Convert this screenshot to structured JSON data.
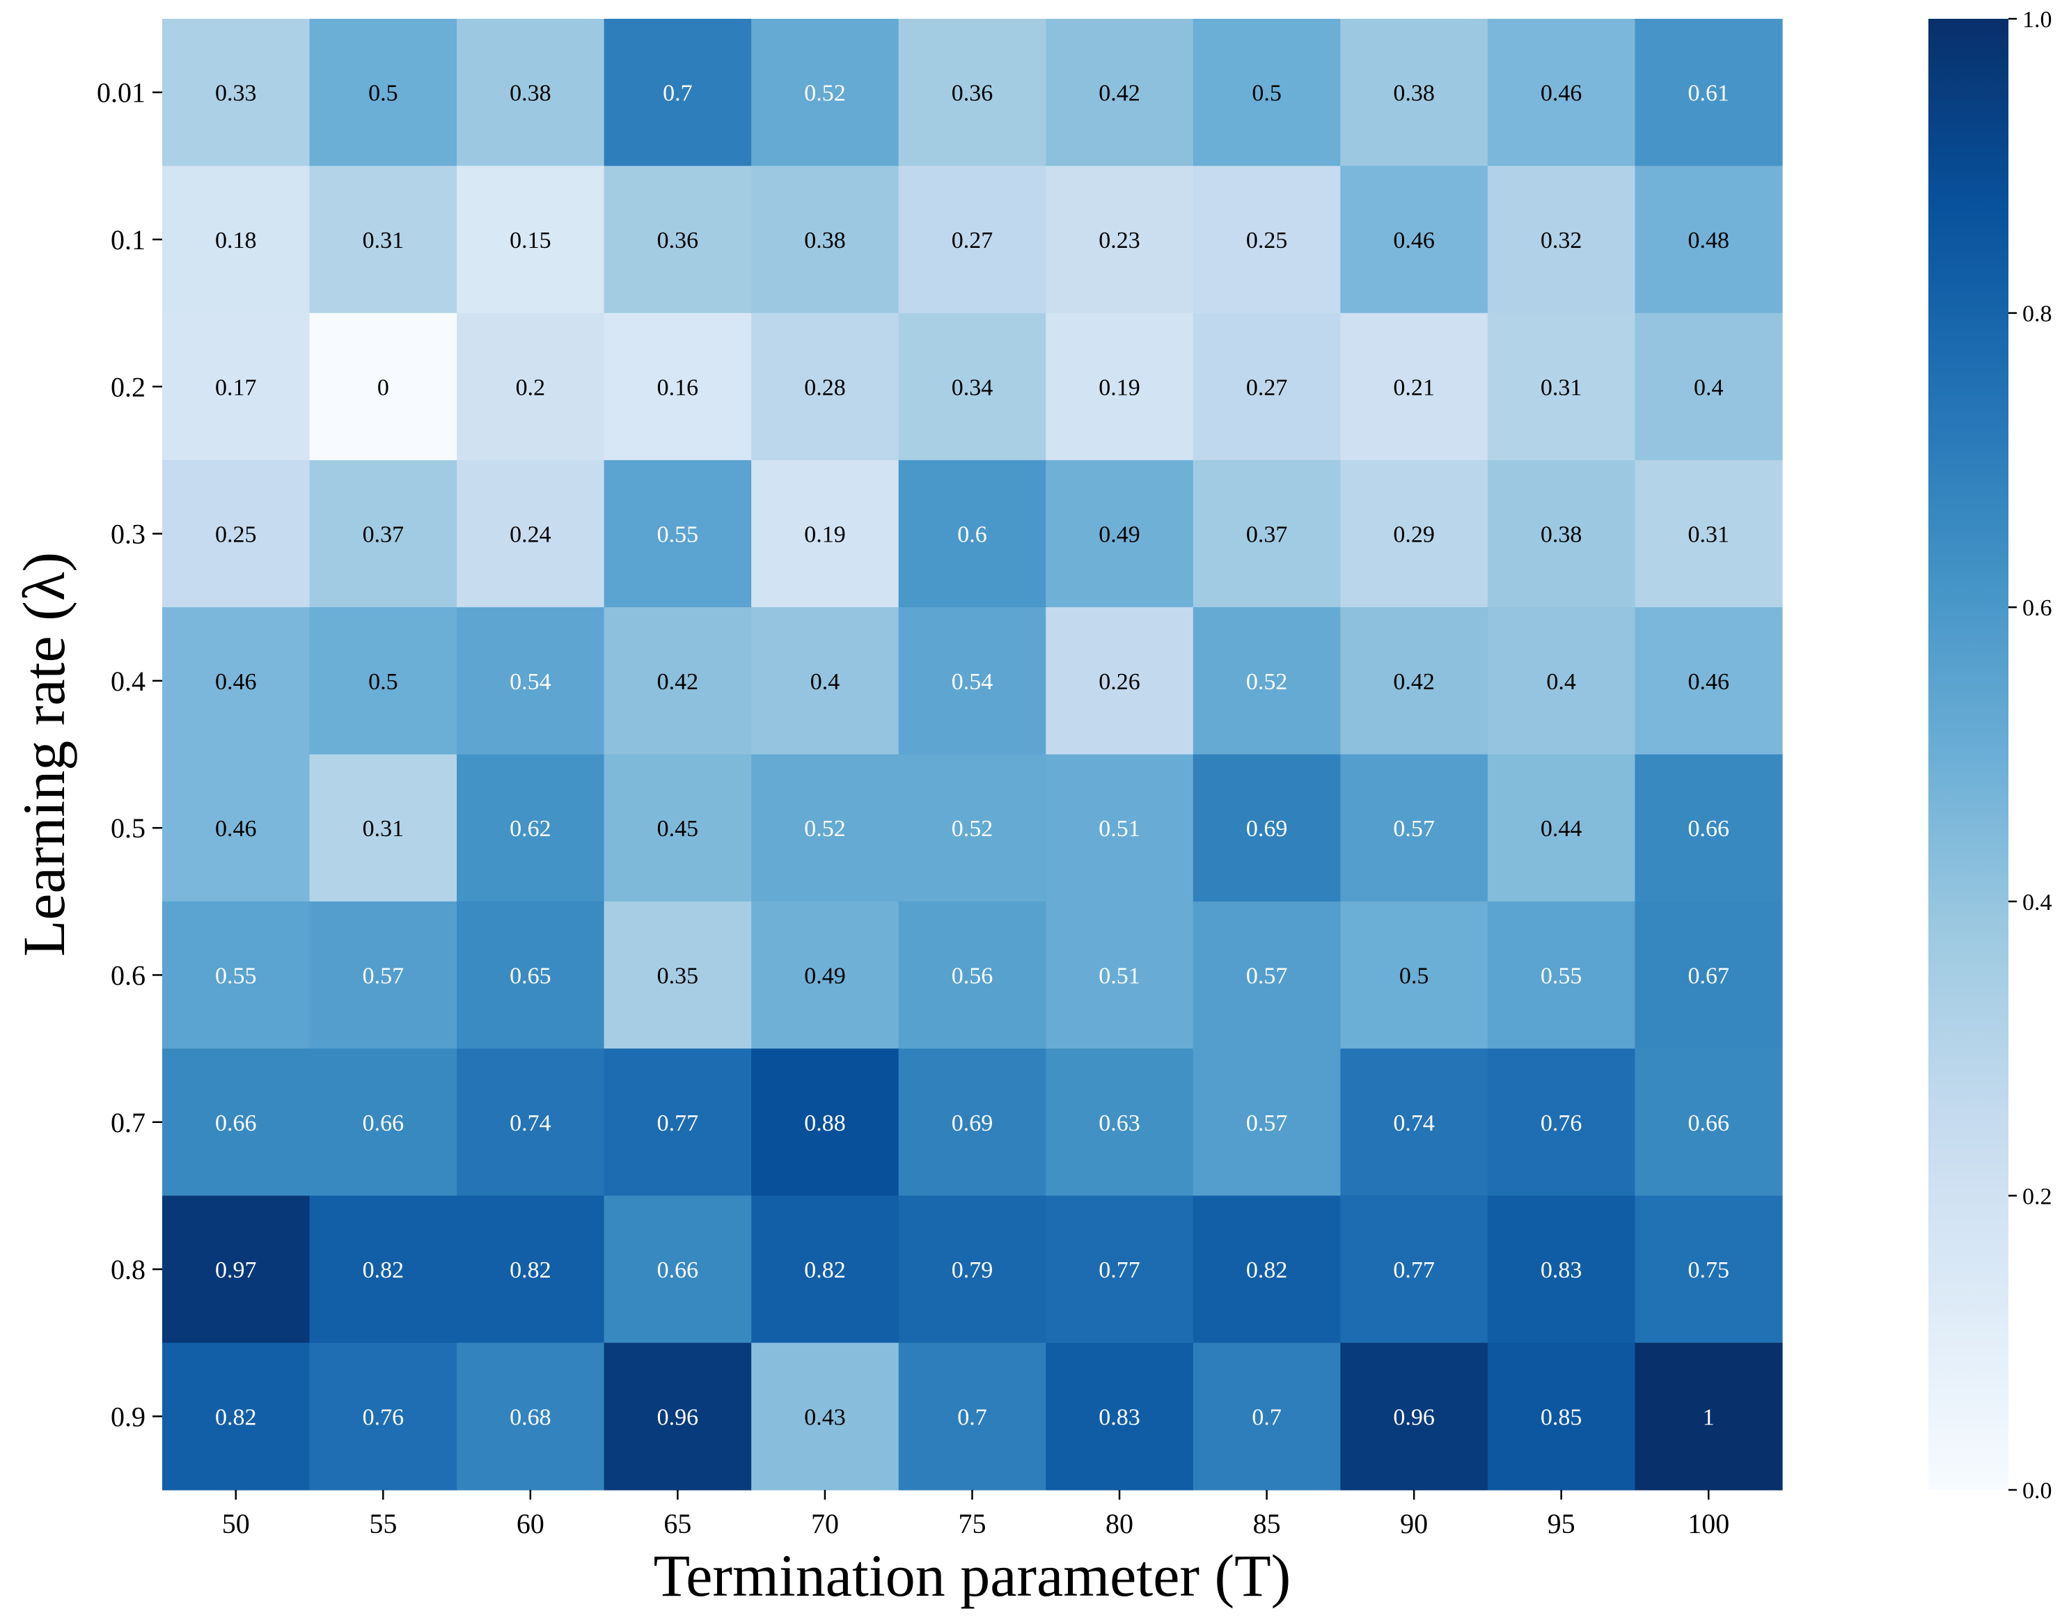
{
  "chart_data": {
    "type": "heatmap",
    "xlabel": "Termination parameter (T)",
    "ylabel": "Learning rate (λ)",
    "x_categories": [
      "50",
      "55",
      "60",
      "65",
      "70",
      "75",
      "80",
      "85",
      "90",
      "95",
      "100"
    ],
    "y_categories": [
      "0.01",
      "0.1",
      "0.2",
      "0.3",
      "0.4",
      "0.5",
      "0.6",
      "0.7",
      "0.8",
      "0.9"
    ],
    "values": [
      [
        0.33,
        0.5,
        0.38,
        0.7,
        0.52,
        0.36,
        0.42,
        0.5,
        0.38,
        0.46,
        0.61
      ],
      [
        0.18,
        0.31,
        0.15,
        0.36,
        0.38,
        0.27,
        0.23,
        0.25,
        0.46,
        0.32,
        0.48
      ],
      [
        0.17,
        0,
        0.2,
        0.16,
        0.28,
        0.34,
        0.19,
        0.27,
        0.21,
        0.31,
        0.4
      ],
      [
        0.25,
        0.37,
        0.24,
        0.55,
        0.19,
        0.6,
        0.49,
        0.37,
        0.29,
        0.38,
        0.31
      ],
      [
        0.46,
        0.5,
        0.54,
        0.42,
        0.4,
        0.54,
        0.26,
        0.52,
        0.42,
        0.4,
        0.46
      ],
      [
        0.46,
        0.31,
        0.62,
        0.45,
        0.52,
        0.52,
        0.51,
        0.69,
        0.57,
        0.44,
        0.66
      ],
      [
        0.55,
        0.57,
        0.65,
        0.35,
        0.49,
        0.56,
        0.51,
        0.57,
        0.5,
        0.55,
        0.67
      ],
      [
        0.66,
        0.66,
        0.74,
        0.77,
        0.88,
        0.69,
        0.63,
        0.57,
        0.74,
        0.76,
        0.66
      ],
      [
        0.97,
        0.82,
        0.82,
        0.66,
        0.82,
        0.79,
        0.77,
        0.82,
        0.77,
        0.83,
        0.75
      ],
      [
        0.82,
        0.76,
        0.68,
        0.96,
        0.43,
        0.7,
        0.83,
        0.7,
        0.96,
        0.85,
        1
      ]
    ],
    "colorbar": {
      "range": [
        0.0,
        1.0
      ],
      "ticks": [
        "0.0",
        "0.2",
        "0.4",
        "0.6",
        "0.8",
        "1.0"
      ]
    },
    "colormap": "Blues",
    "colormap_stops": [
      "#f7fbff",
      "#deebf7",
      "#c6dbef",
      "#9ecae1",
      "#6baed6",
      "#4292c6",
      "#2171b5",
      "#08519c",
      "#08306b"
    ],
    "cell_text_colors": {
      "light": "#ffffff",
      "dark": "#000000"
    }
  }
}
